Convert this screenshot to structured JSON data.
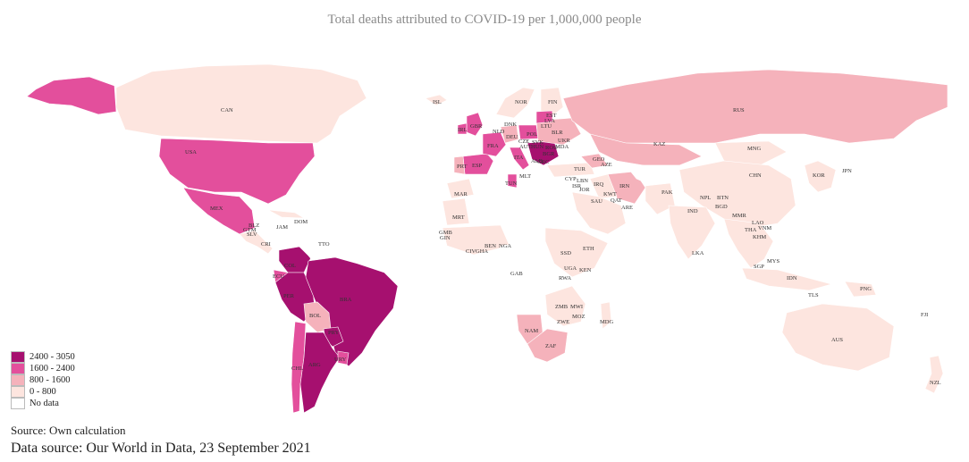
{
  "title": "Total deaths attributed to COVID-19 per 1,000,000 people",
  "colors": {
    "c2400": "#a6106f",
    "c1600": "#e34f9c",
    "c800": "#f5b2bb",
    "c0": "#fde5df",
    "nodata": "#ffffff"
  },
  "legend": [
    {
      "range": "2400 - 3050",
      "color": "#a6106f"
    },
    {
      "range": "1600 - 2400",
      "color": "#e34f9c"
    },
    {
      "range": "800 - 1600",
      "color": "#f5b2bb"
    },
    {
      "range": "0 - 800",
      "color": "#fde5df"
    },
    {
      "range": "No data",
      "color": "#ffffff"
    }
  ],
  "country_labels": [
    "CAN",
    "USA",
    "MEX",
    "ISL",
    "NOR",
    "FIN",
    "RUS",
    "DNK",
    "EST",
    "LVA",
    "LTU",
    "IRL",
    "GBR",
    "NLD",
    "DEU",
    "POL",
    "BLR",
    "UKR",
    "FRA",
    "ITA",
    "ESP",
    "PRT",
    "TUN",
    "MLT",
    "HUN",
    "ROU",
    "BGR",
    "GRC",
    "SVK",
    "CZE",
    "AUT",
    "MDA",
    "ALB",
    "GEO",
    "AZE",
    "TUR",
    "CYP",
    "LBN",
    "ISR",
    "JOR",
    "IRQ",
    "IRN",
    "KWT",
    "SAU",
    "QAT",
    "ARE",
    "KAZ",
    "MNG",
    "CHN",
    "KOR",
    "JPN",
    "PAK",
    "IND",
    "NPL",
    "BTN",
    "BGD",
    "MMR",
    "LAO",
    "THA",
    "VNM",
    "KHM",
    "LKA",
    "MYS",
    "SGP",
    "IDN",
    "TLS",
    "PNG",
    "FJI",
    "AUS",
    "NZL",
    "MAR",
    "MRT",
    "GMB",
    "GIN",
    "CIV",
    "GHA",
    "BEN",
    "NGA",
    "ETH",
    "SSD",
    "UGA",
    "KEN",
    "RWA",
    "GAB",
    "ZMB",
    "MWI",
    "MOZ",
    "ZWE",
    "MDG",
    "NAM",
    "ZAF",
    "DOM",
    "JAM",
    "CRI",
    "TTO",
    "COL",
    "ECU",
    "PER",
    "BRA",
    "BOL",
    "PRY",
    "ARG",
    "CHL",
    "URY",
    "BLZ",
    "GTM",
    "SLV"
  ],
  "source_note": "Source: Own calculation",
  "data_source": "Data source: Our World in Data, 23 September 2021"
}
